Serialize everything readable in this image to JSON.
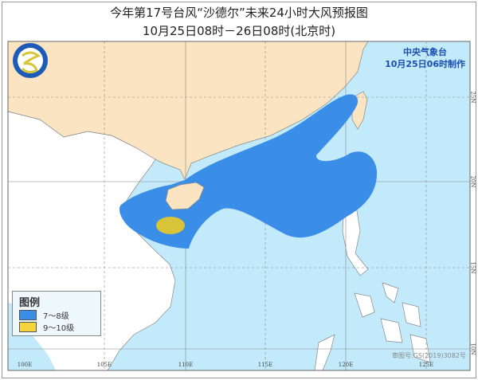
{
  "title": "今年第17号台风“沙德尔”未来24小时大风预报图",
  "subtitle": "10月25日08时－26日08时(北京时)",
  "agency": {
    "name": "中央气象台",
    "issued": "10月25日06时制作"
  },
  "legend": {
    "title": "图例",
    "items": [
      {
        "label": "7～8级",
        "color": "#3a8ee8"
      },
      {
        "label": "9～10级",
        "color": "#d8c437"
      }
    ]
  },
  "longitude_labels": [
    "100E",
    "105E",
    "110E",
    "115E",
    "120E",
    "125E"
  ],
  "latitude_labels": [
    "25N",
    "20N",
    "15N",
    "10N"
  ],
  "approval_number": "审图号:GS(2019)3082号",
  "colors": {
    "ocean": "#c2eafa",
    "china_land": "#fbe4c2",
    "other_land": "#ffffff",
    "wind_7_8": "#3a8ee8",
    "wind_9_10": "#d8c437",
    "logo": "#1e5bb8"
  }
}
